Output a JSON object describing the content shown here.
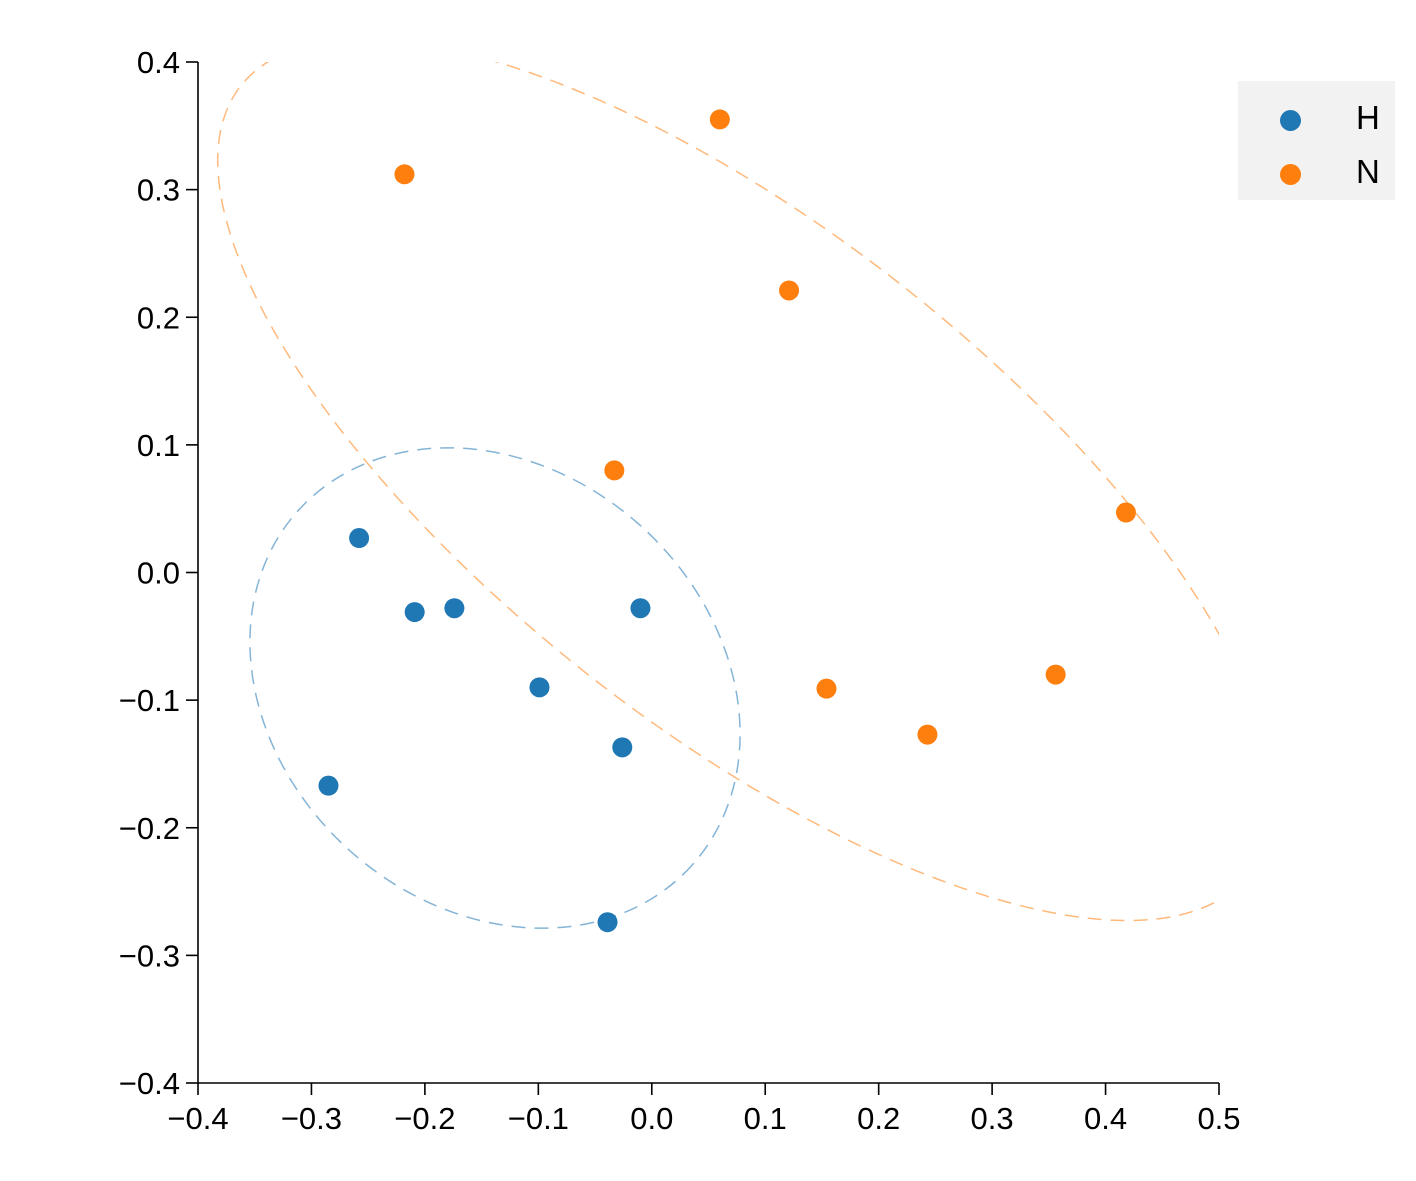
{
  "chart_data": {
    "type": "scatter",
    "title": "",
    "xlabel": "",
    "ylabel": "",
    "xlim": [
      -0.4,
      0.5
    ],
    "ylim": [
      -0.4,
      0.4
    ],
    "xticks": [
      -0.4,
      -0.3,
      -0.2,
      -0.1,
      0.0,
      0.1,
      0.2,
      0.3,
      0.4,
      0.5
    ],
    "xtick_labels": [
      "−0.4",
      "−0.3",
      "−0.2",
      "−0.1",
      "0.0",
      "0.1",
      "0.2",
      "0.3",
      "0.4",
      "0.5"
    ],
    "yticks": [
      0.4,
      0.3,
      0.2,
      0.1,
      0.0,
      -0.1,
      -0.2,
      -0.3,
      -0.4
    ],
    "ytick_labels": [
      "0.4",
      "0.3",
      "0.2",
      "0.1",
      "0.0",
      "−0.1",
      "−0.2",
      "−0.3",
      "−0.4"
    ],
    "grid": false,
    "legend_position": "upper right, outside",
    "series": [
      {
        "name": "H",
        "color": "#1f77b4",
        "points": [
          [
            -0.258,
            0.027
          ],
          [
            -0.209,
            -0.031
          ],
          [
            -0.174,
            -0.028
          ],
          [
            -0.01,
            -0.028
          ],
          [
            -0.099,
            -0.09
          ],
          [
            -0.026,
            -0.137
          ],
          [
            -0.285,
            -0.167
          ],
          [
            -0.039,
            -0.274
          ]
        ],
        "ellipse": {
          "style": "dashed",
          "center": [
            -0.136,
            -0.09
          ],
          "description": "confidence ellipse"
        }
      },
      {
        "name": "N",
        "color": "#ff7f0e",
        "points": [
          [
            -0.218,
            0.312
          ],
          [
            0.06,
            0.355
          ],
          [
            0.121,
            0.221
          ],
          [
            -0.033,
            0.08
          ],
          [
            0.418,
            0.047
          ],
          [
            0.154,
            -0.091
          ],
          [
            0.356,
            -0.08
          ],
          [
            0.243,
            -0.127
          ]
        ],
        "ellipse": {
          "style": "dashed",
          "center": [
            0.125,
            0.05
          ],
          "description": "confidence ellipse (clipped by axes)"
        }
      }
    ]
  },
  "legend": {
    "items": [
      {
        "label": "H",
        "color": "#1f77b4"
      },
      {
        "label": "N",
        "color": "#ff7f0e"
      }
    ]
  }
}
